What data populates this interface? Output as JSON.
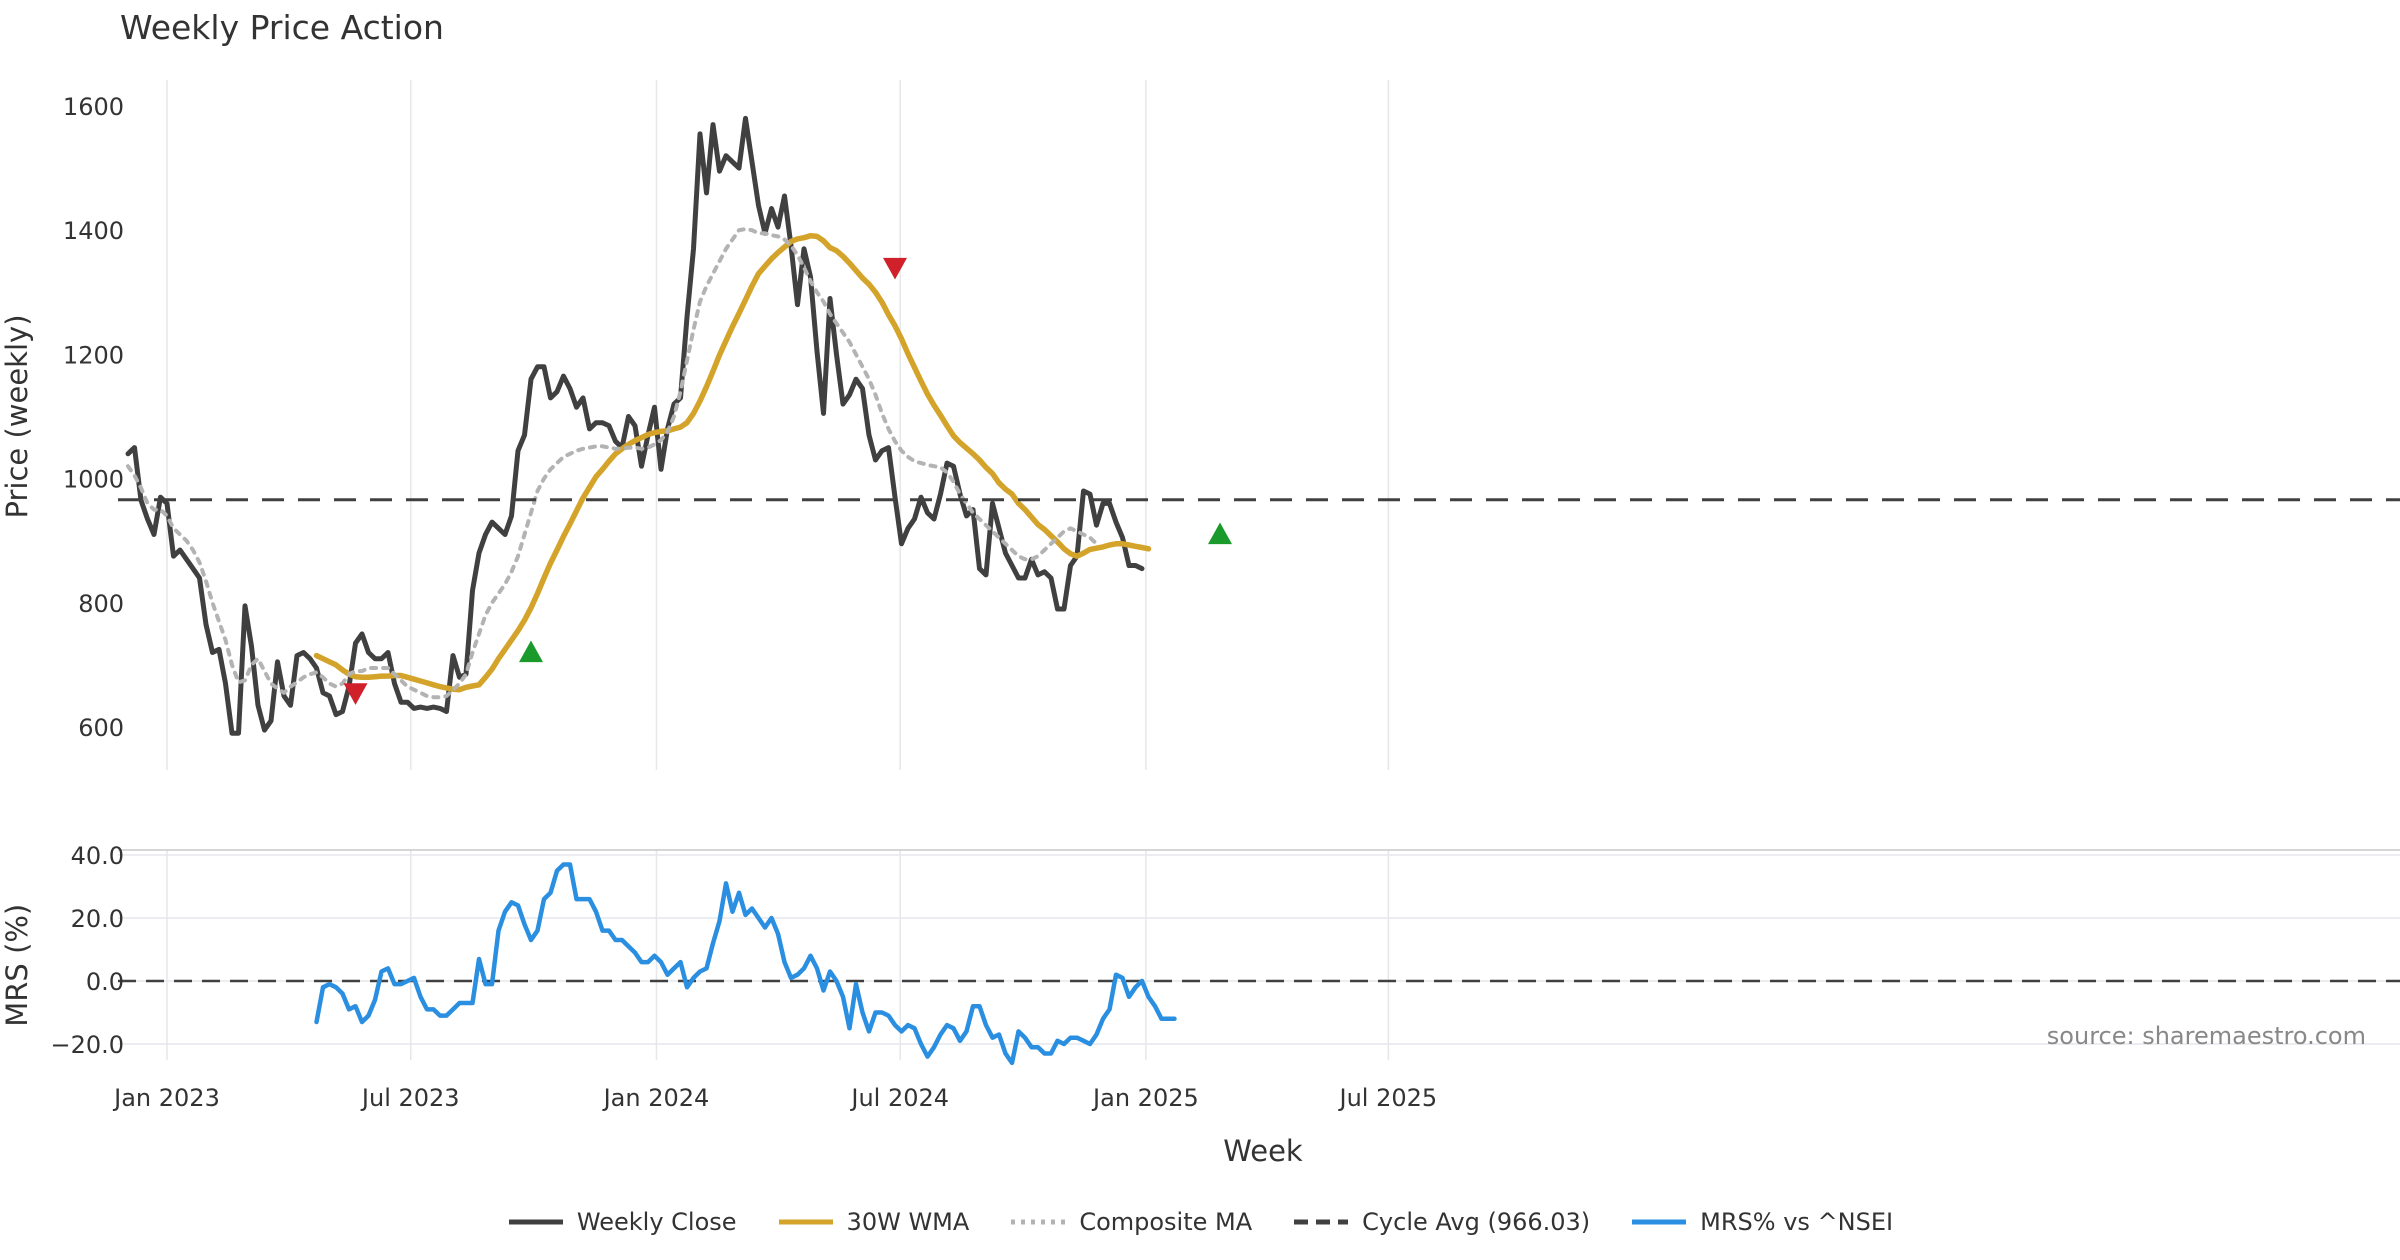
{
  "title": "Weekly Price Action",
  "chart_data": {
    "type": "line",
    "source": "source: sharemaestro.com",
    "xlabel": "Week",
    "x_ticks": [
      "Jan 2023",
      "Jul 2023",
      "Jan 2024",
      "Jul 2024",
      "Jan 2025",
      "Jul 2025"
    ],
    "price_panel": {
      "ylabel": "Price (weekly)",
      "ylim": [
        520,
        1630
      ],
      "yticks": [
        600,
        800,
        1000,
        1200,
        1400,
        1600
      ],
      "series": [
        {
          "name": "Weekly Close",
          "color": "#404040",
          "style": "solid",
          "start_week": 0,
          "values": [
            1040,
            1050,
            965,
            935,
            910,
            970,
            960,
            875,
            885,
            870,
            855,
            840,
            765,
            720,
            725,
            670,
            590,
            590,
            795,
            730,
            635,
            595,
            610,
            705,
            650,
            635,
            715,
            720,
            710,
            695,
            655,
            650,
            620,
            625,
            665,
            735,
            750,
            720,
            710,
            710,
            720,
            670,
            640,
            640,
            630,
            632,
            630,
            632,
            630,
            625,
            715,
            680,
            685,
            820,
            880,
            910,
            930,
            920,
            910,
            940,
            1045,
            1070,
            1160,
            1180,
            1180,
            1130,
            1140,
            1165,
            1145,
            1115,
            1130,
            1080,
            1090,
            1090,
            1085,
            1060,
            1050,
            1100,
            1085,
            1020,
            1070,
            1115,
            1015,
            1080,
            1120,
            1130,
            1260,
            1370,
            1555,
            1460,
            1570,
            1495,
            1520,
            1510,
            1500,
            1580,
            1510,
            1440,
            1395,
            1435,
            1405,
            1455,
            1375,
            1280,
            1370,
            1325,
            1205,
            1105,
            1290,
            1200,
            1120,
            1135,
            1160,
            1145,
            1070,
            1030,
            1045,
            1050,
            970,
            895,
            920,
            935,
            970,
            945,
            935,
            975,
            1025,
            1020,
            975,
            940,
            950,
            855,
            845,
            960,
            920,
            880,
            860,
            840,
            840,
            870,
            845,
            850,
            840,
            790,
            790,
            860,
            875,
            980,
            975,
            925,
            960,
            960,
            930,
            905,
            860,
            860,
            855
          ]
        },
        {
          "name": "30W WMA",
          "color": "#d4a32a",
          "style": "solid",
          "start_week": 29,
          "values": [
            715,
            710,
            705,
            700,
            692,
            685,
            681,
            680,
            680,
            681,
            682,
            682,
            683,
            683,
            680,
            677,
            674,
            671,
            668,
            665,
            663,
            661,
            660,
            664,
            666,
            668,
            680,
            693,
            710,
            725,
            740,
            755,
            772,
            792,
            815,
            840,
            864,
            885,
            907,
            927,
            948,
            969,
            986,
            1003,
            1015,
            1028,
            1040,
            1048,
            1055,
            1061,
            1066,
            1071,
            1074,
            1076,
            1077,
            1080,
            1083,
            1090,
            1105,
            1125,
            1148,
            1173,
            1199,
            1222,
            1245,
            1266,
            1288,
            1310,
            1330,
            1342,
            1354,
            1364,
            1373,
            1382,
            1386,
            1388,
            1391,
            1390,
            1383,
            1372,
            1367,
            1358,
            1347,
            1335,
            1323,
            1313,
            1300,
            1284,
            1264,
            1246,
            1225,
            1201,
            1179,
            1157,
            1136,
            1118,
            1102,
            1085,
            1069,
            1058,
            1049,
            1040,
            1030,
            1018,
            1008,
            993,
            983,
            975,
            960,
            950,
            938,
            926,
            918,
            908,
            898,
            887,
            879,
            875,
            880,
            886,
            888,
            890,
            893,
            895,
            895,
            893,
            891,
            889,
            887
          ]
        },
        {
          "name": "Composite MA",
          "color": "#b3b3b3",
          "style": "dotted",
          "start_week": 0,
          "values": [
            1020,
            1005,
            985,
            960,
            950,
            950,
            940,
            920,
            910,
            900,
            885,
            865,
            835,
            800,
            770,
            740,
            700,
            672,
            675,
            700,
            710,
            690,
            670,
            662,
            655,
            665,
            672,
            680,
            685,
            688,
            680,
            670,
            665,
            670,
            685,
            690,
            690,
            695,
            695,
            695,
            695,
            685,
            675,
            665,
            660,
            655,
            650,
            648,
            648,
            650,
            660,
            670,
            685,
            720,
            750,
            780,
            800,
            815,
            830,
            850,
            875,
            910,
            945,
            980,
            1000,
            1015,
            1025,
            1035,
            1040,
            1045,
            1048,
            1050,
            1052,
            1052,
            1050,
            1048,
            1048,
            1050,
            1050,
            1048,
            1050,
            1055,
            1062,
            1075,
            1100,
            1140,
            1190,
            1240,
            1285,
            1310,
            1330,
            1350,
            1370,
            1385,
            1400,
            1402,
            1400,
            1395,
            1395,
            1392,
            1390,
            1385,
            1375,
            1360,
            1340,
            1318,
            1300,
            1285,
            1265,
            1250,
            1235,
            1220,
            1200,
            1180,
            1160,
            1135,
            1105,
            1080,
            1060,
            1045,
            1035,
            1028,
            1025,
            1022,
            1020,
            1018,
            1010,
            995,
            975,
            960,
            945,
            935,
            925,
            915,
            905,
            895,
            885,
            875,
            870,
            870,
            875,
            885,
            895,
            905,
            915,
            920,
            915,
            910,
            905,
            895
          ]
        },
        {
          "name": "Cycle Avg (966.03)",
          "color": "#404040",
          "style": "dashed",
          "constant": 966.03
        }
      ],
      "markers": [
        {
          "type": "sell",
          "week": 35,
          "value": 655,
          "color": "#d0202a"
        },
        {
          "type": "buy",
          "week": 62,
          "value": 720,
          "color": "#1a9a2a"
        },
        {
          "type": "sell",
          "week": 118,
          "value": 1340,
          "color": "#d0202a"
        },
        {
          "type": "buy",
          "week": 168,
          "value": 910,
          "color": "#1a9a2a"
        }
      ]
    },
    "mrs_panel": {
      "ylabel": "MRS (%)",
      "ylim": [
        -25,
        42
      ],
      "yticks": [
        40.0,
        20.0,
        0.0,
        -20.0
      ],
      "ytick_labels": [
        "40.0",
        "20.0",
        "0.0",
        "−20.0"
      ],
      "zero_line": 0,
      "series": [
        {
          "name": "MRS% vs ^NSEI",
          "color": "#2a8fe0",
          "style": "solid",
          "start_week": 29,
          "values": [
            -13,
            -2,
            -1,
            -2,
            -4,
            -9,
            -8,
            -13,
            -11,
            -6,
            3,
            4,
            -1,
            -1,
            0,
            1,
            -5,
            -9,
            -9,
            -11,
            -11,
            -9,
            -7,
            -7,
            -7,
            7,
            -1,
            -1,
            16,
            22,
            25,
            24,
            18,
            13,
            16,
            26,
            28,
            35,
            37,
            37,
            26,
            26,
            26,
            22,
            16,
            16,
            13,
            13,
            11,
            9,
            6,
            6,
            8,
            6,
            2,
            4,
            6,
            -2,
            1,
            3,
            4,
            12,
            19,
            31,
            22,
            28,
            21,
            23,
            20,
            17,
            20,
            15,
            6,
            1,
            2,
            4,
            8,
            4,
            -3,
            3,
            0,
            -5,
            -15,
            -1,
            -10,
            -16,
            -10,
            -10,
            -11,
            -14,
            -16,
            -14,
            -15,
            -20,
            -24,
            -21,
            -17,
            -14,
            -15,
            -19,
            -16,
            -8,
            -8,
            -14,
            -18,
            -17,
            -23,
            -26,
            -16,
            -18,
            -21,
            -21,
            -23,
            -23,
            -19,
            -20,
            -18,
            -18,
            -19,
            -20,
            -17,
            -12,
            -9,
            2,
            1,
            -5,
            -2,
            0,
            -5,
            -8,
            -12,
            -12,
            -12
          ]
        }
      ]
    },
    "legend": [
      {
        "label": "Weekly Close",
        "color": "#404040",
        "style": "solid"
      },
      {
        "label": "30W WMA",
        "color": "#d4a32a",
        "style": "solid"
      },
      {
        "label": "Composite MA",
        "color": "#b3b3b3",
        "style": "dotted"
      },
      {
        "label": "Cycle Avg (966.03)",
        "color": "#404040",
        "style": "dashed"
      },
      {
        "label": "MRS% vs ^NSEI",
        "color": "#2a8fe0",
        "style": "solid"
      }
    ]
  }
}
